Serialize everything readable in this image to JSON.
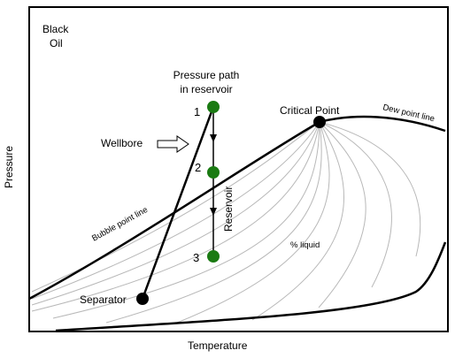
{
  "diagram": {
    "corner_label": [
      "Black",
      "Oil"
    ],
    "axis_y_label": "Pressure",
    "axis_x_label": "Temperature",
    "pressure_path_label": [
      "Pressure path",
      "in reservoir"
    ],
    "critical_point_label": "Critical Point",
    "dew_point_label": "Dew point line",
    "bubble_point_label": "Bubble point line",
    "wellbore_label": "Wellbore",
    "reservoir_label": "Reservoir",
    "liquid_label": "% liquid",
    "separator_label": "Separator",
    "point_labels": [
      "1",
      "2",
      "3"
    ],
    "colors": {
      "green_point": "#1a7a12",
      "black_point": "#000000",
      "quality_lines": "#b8b8b8"
    }
  }
}
